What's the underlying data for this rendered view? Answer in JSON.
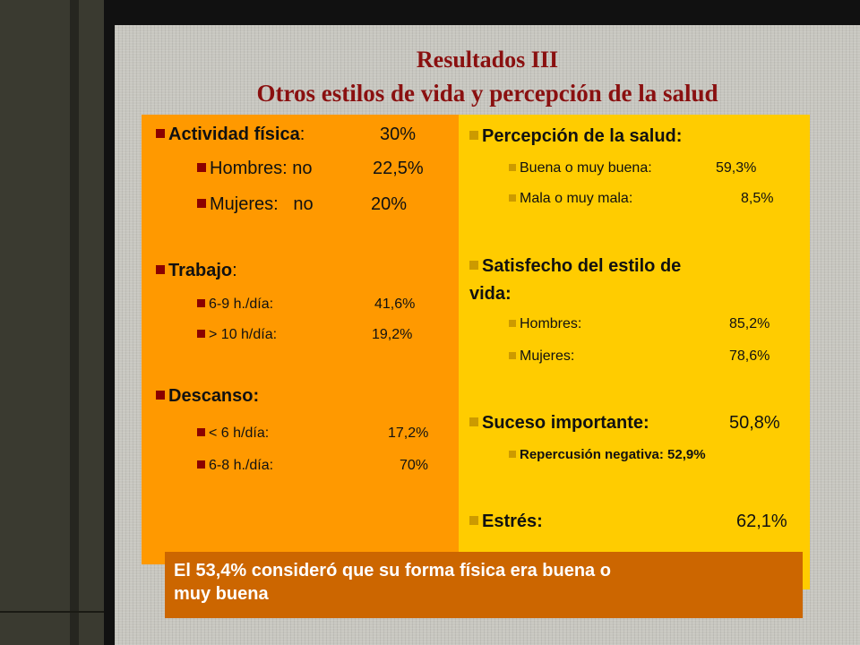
{
  "slide": {
    "title": "Resultados III",
    "subtitle": "Otros estilos de vida y percepción de la salud"
  },
  "left_panel": {
    "actividad": {
      "label": "Actividad física",
      "colon": ":",
      "value": "30%"
    },
    "hombres": {
      "label": "Hombres: no",
      "value": "22,5%"
    },
    "mujeres": {
      "label": "Mujeres:   no",
      "value": "20%"
    },
    "trabajo": {
      "label": "Trabajo",
      "colon": ":"
    },
    "trabajo_6_9": {
      "label": "6-9 h./día:",
      "value": "41,6%"
    },
    "trabajo_10": {
      "label": "> 10 h/día:",
      "value": "19,2%"
    },
    "descanso": {
      "label": "Descanso:"
    },
    "descanso_6": {
      "label": "< 6 h/día:",
      "value": "17,2%"
    },
    "descanso_6_8": {
      "label": "6-8 h./día:",
      "value": "70%"
    }
  },
  "right_panel": {
    "percepcion": {
      "label": "Percepción de la salud:"
    },
    "buena": {
      "label": "Buena o muy buena:",
      "value": "59,3%"
    },
    "mala": {
      "label": "Mala o muy mala:",
      "value": "8,5%"
    },
    "satisfecho": {
      "line1": "Satisfecho del estilo de",
      "line2": "vida:"
    },
    "hombres": {
      "label": "Hombres:",
      "value": "85,2%"
    },
    "mujeres": {
      "label": "Mujeres:",
      "value": "78,6%"
    },
    "suceso": {
      "label": "Suceso importante:",
      "value": "50,8%"
    },
    "repercusion": {
      "label": "Repercusión negativa: 52,9%"
    },
    "estres": {
      "label": "Estrés:",
      "value": "62,1%"
    }
  },
  "note": {
    "line1": "El 53,4% consideró que su forma física era buena o",
    "line2": "muy buena"
  },
  "colors": {
    "title": "#8a1010",
    "left_panel": "#ff9900",
    "right_panel": "#ffcc00",
    "note_box": "#cc6600",
    "left_bullet": "#8b0000",
    "right_bullet": "#cc9a00"
  },
  "icons": {
    "left_bullet": "square-bullet-icon",
    "right_bullet": "square-bullet-icon"
  }
}
